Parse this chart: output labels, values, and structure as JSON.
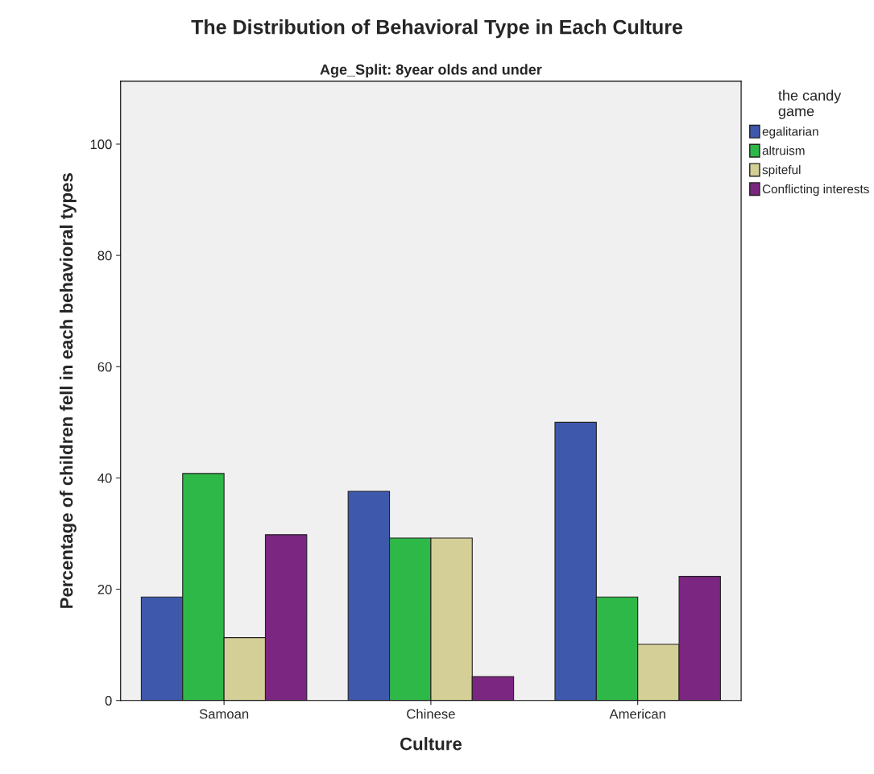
{
  "chart_data": {
    "type": "bar",
    "title": "The Distribution of Behavioral Type in Each Culture",
    "subtitle": "Age_Split: 8year olds and under",
    "xlabel": "Culture",
    "ylabel": "Percentage of children fell in each behavioral types",
    "legend_title": "the candy\ngame",
    "categories": [
      "Samoan",
      "Chinese",
      "American"
    ],
    "series": [
      {
        "name": "egalitarian",
        "color": "#3e58ac",
        "values": [
          18.6,
          37.6,
          50
        ]
      },
      {
        "name": "altruism",
        "color": "#2eb848",
        "values": [
          40.8,
          29.2,
          18.6
        ]
      },
      {
        "name": "spiteful",
        "color": "#d4cf96",
        "values": [
          11.3,
          29.2,
          10.1
        ]
      },
      {
        "name": "Conflicting interests",
        "color": "#7b2680",
        "values": [
          29.8,
          4.3,
          22.3
        ]
      }
    ],
    "ylim": [
      0,
      111.3
    ],
    "yticks": [
      0,
      20,
      40,
      60,
      80,
      100
    ],
    "grid": false,
    "legend": "right"
  }
}
